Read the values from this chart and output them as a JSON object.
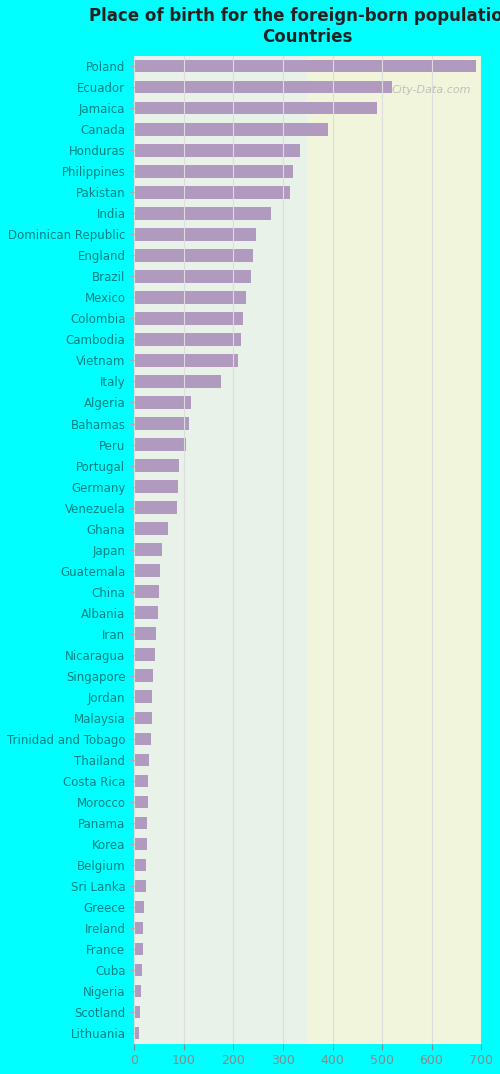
{
  "title": "Place of birth for the foreign-born population -\nCountries",
  "categories": [
    "Poland",
    "Ecuador",
    "Jamaica",
    "Canada",
    "Honduras",
    "Philippines",
    "Pakistan",
    "India",
    "Dominican Republic",
    "England",
    "Brazil",
    "Mexico",
    "Colombia",
    "Cambodia",
    "Vietnam",
    "Italy",
    "Algeria",
    "Bahamas",
    "Peru",
    "Portugal",
    "Germany",
    "Venezuela",
    "Ghana",
    "Japan",
    "Guatemala",
    "China",
    "Albania",
    "Iran",
    "Nicaragua",
    "Singapore",
    "Jordan",
    "Malaysia",
    "Trinidad and Tobago",
    "Thailand",
    "Costa Rica",
    "Morocco",
    "Panama",
    "Korea",
    "Belgium",
    "Sri Lanka",
    "Greece",
    "Ireland",
    "France",
    "Cuba",
    "Nigeria",
    "Scotland",
    "Lithuania"
  ],
  "values": [
    690,
    520,
    490,
    390,
    335,
    320,
    315,
    275,
    245,
    240,
    235,
    225,
    220,
    215,
    210,
    175,
    115,
    110,
    105,
    90,
    88,
    85,
    68,
    55,
    52,
    50,
    47,
    44,
    42,
    38,
    36,
    35,
    33,
    30,
    28,
    27,
    26,
    25,
    24,
    23,
    20,
    18,
    17,
    15,
    13,
    12,
    10
  ],
  "bar_color": "#b09ac0",
  "background_color": "#00ffff",
  "plot_bg_start": "#e8f5e9",
  "plot_bg_end": "#f5f5e8",
  "xlabel_color": "#555555",
  "label_color": "#008080",
  "title_color": "#222222",
  "xlim": [
    0,
    700
  ],
  "xticks": [
    0,
    100,
    200,
    300,
    400,
    500,
    600,
    700
  ],
  "tick_color": "#888888",
  "grid_color": "#dddddd",
  "watermark": "City-Data.com"
}
